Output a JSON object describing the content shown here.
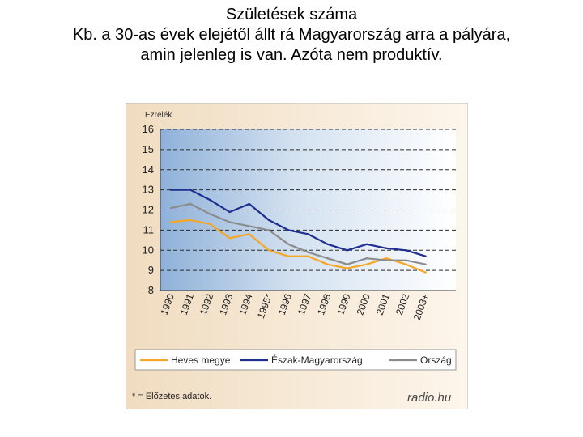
{
  "header": {
    "title": "Születések száma",
    "subtitle_line1": "Kb. a 30-as évek elejétől állt rá Magyarország arra a pályára,",
    "subtitle_line2": "amin jelenleg is van. Azóta nem produktív."
  },
  "chart_data": {
    "type": "line",
    "ylabel": "Ezrelék",
    "ylim": [
      8,
      16
    ],
    "yticks": [
      8,
      9,
      10,
      11,
      12,
      13,
      14,
      15,
      16
    ],
    "grid": "horizontal dashed",
    "categories": [
      "1990",
      "1991",
      "1992",
      "1993",
      "1994",
      "1995*",
      "1996",
      "1997",
      "1998",
      "1999",
      "2000",
      "2001",
      "2002",
      "2003+"
    ],
    "series": [
      {
        "name": "Heves megye",
        "color": "#f5a623",
        "values": [
          11.4,
          11.5,
          11.3,
          10.6,
          10.8,
          10.0,
          9.7,
          9.7,
          9.3,
          9.1,
          9.3,
          9.6,
          9.3,
          8.9
        ]
      },
      {
        "name": "Észak-Magyarország",
        "color": "#1f2f8f",
        "values": [
          13.0,
          13.0,
          12.5,
          11.9,
          12.3,
          11.5,
          11.0,
          10.8,
          10.3,
          10.0,
          10.3,
          10.1,
          10.0,
          9.7
        ]
      },
      {
        "name": "Ország",
        "color": "#8c8c8c",
        "values": [
          12.1,
          12.3,
          11.8,
          11.4,
          11.2,
          11.0,
          10.3,
          9.9,
          9.6,
          9.3,
          9.6,
          9.5,
          9.5,
          9.3
        ]
      }
    ],
    "legend": "bottom",
    "footnote": "* = Előzetes adatok.",
    "brand": "radio.hu"
  }
}
